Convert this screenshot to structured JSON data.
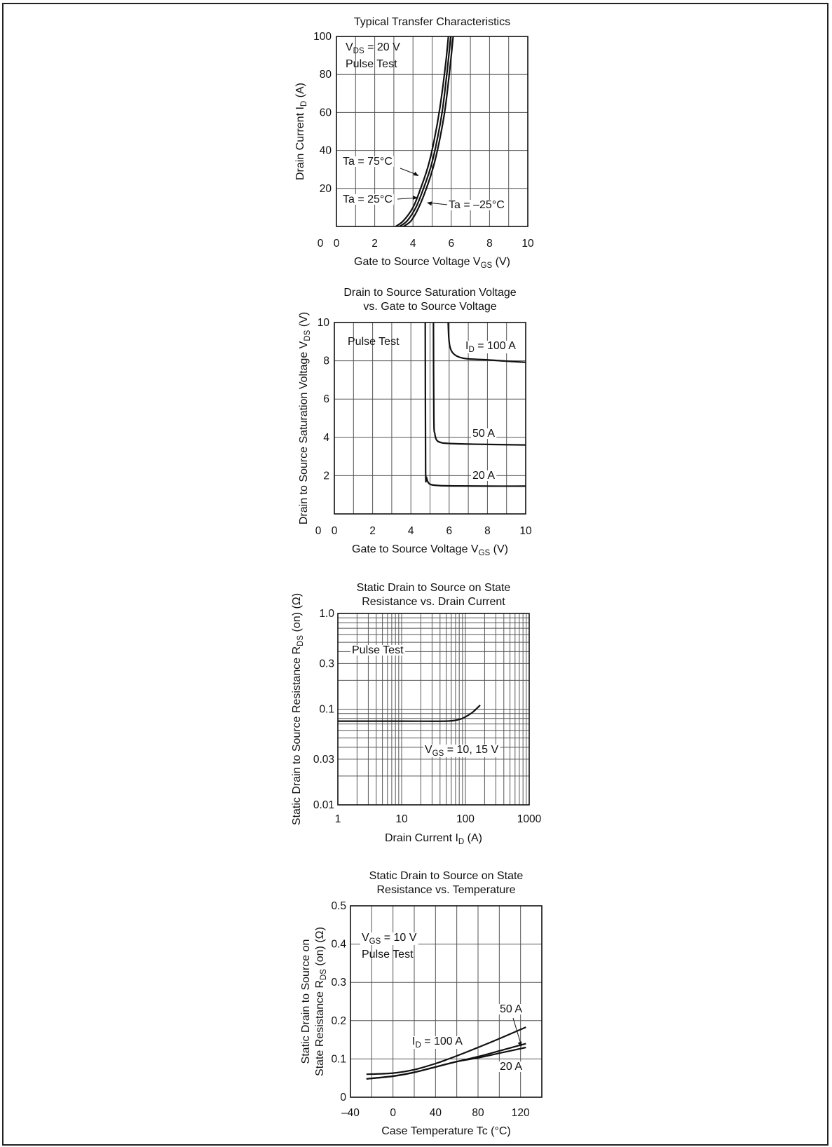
{
  "chart_data": [
    {
      "id": "c1",
      "type": "line",
      "title": "Typical Transfer Characteristics",
      "xlabel": {
        "main": "Gate to Source Voltage V",
        "sub": "GS",
        "tail": " (V)"
      },
      "ylabel": {
        "main": "Drain Current I",
        "sub": "D",
        "tail": " (A)"
      },
      "xlim": [
        0,
        10
      ],
      "ylim": [
        0,
        100
      ],
      "x_scale": "linear",
      "y_scale": "linear",
      "grid": true,
      "xticks": [
        0,
        2,
        4,
        6,
        8,
        10
      ],
      "xtick_labels": [
        "0",
        "2",
        "4",
        "6",
        "8",
        "10"
      ],
      "yticks": [
        20,
        40,
        60,
        80,
        100
      ],
      "ytick_labels": [
        "20",
        "40",
        "60",
        "80",
        "100"
      ],
      "annotations": [
        {
          "main": "V",
          "sub": "DS",
          "tail": " = 20 V"
        },
        {
          "main": "Pulse Test"
        },
        {
          "main": "Ta = 75°C"
        },
        {
          "main": "Ta = 25°C"
        },
        {
          "main": "Ta = –25°C"
        }
      ],
      "series": [
        {
          "name": "Ta = 75°C",
          "x": [
            3.1,
            3.5,
            4.0,
            4.4,
            4.8,
            5.1,
            5.4,
            5.7,
            5.85
          ],
          "y": [
            0,
            3,
            10,
            20,
            32,
            45,
            62,
            85,
            100
          ]
        },
        {
          "name": "Ta = 25°C",
          "x": [
            3.3,
            3.7,
            4.15,
            4.55,
            4.95,
            5.25,
            5.55,
            5.82,
            5.97
          ],
          "y": [
            0,
            3,
            10,
            20,
            32,
            45,
            62,
            85,
            100
          ]
        },
        {
          "name": "Ta = –25°C",
          "x": [
            3.5,
            3.9,
            4.3,
            4.7,
            5.08,
            5.38,
            5.68,
            5.95,
            6.1
          ],
          "y": [
            0,
            3,
            10,
            20,
            32,
            45,
            62,
            85,
            100
          ]
        }
      ]
    },
    {
      "id": "c2",
      "type": "line",
      "title": [
        "Drain to Source Saturation Voltage",
        "vs. Gate to Source Voltage"
      ],
      "xlabel": {
        "main": "Gate to Source Voltage V",
        "sub": "GS",
        "tail": " (V)"
      },
      "ylabel": {
        "main": "Drain to Source Saturation Voltage V",
        "sub": "DS",
        "tail": " (V)"
      },
      "xlim": [
        0,
        10
      ],
      "ylim": [
        0,
        10
      ],
      "x_scale": "linear",
      "y_scale": "linear",
      "grid": true,
      "xticks": [
        0,
        2,
        4,
        6,
        8,
        10
      ],
      "xtick_labels": [
        "0",
        "2",
        "4",
        "6",
        "8",
        "10"
      ],
      "yticks": [
        2,
        4,
        6,
        8,
        10
      ],
      "ytick_labels": [
        "2",
        "4",
        "6",
        "8",
        "10"
      ],
      "annotations": [
        {
          "main": "Pulse Test"
        },
        {
          "main": "I",
          "sub": "D",
          "tail": " = 100 A"
        },
        {
          "main": "50 A"
        },
        {
          "main": "20 A"
        }
      ],
      "series": [
        {
          "name": "I_D = 100 A",
          "x": [
            5.95,
            5.98,
            6.05,
            6.2,
            6.5,
            7.0,
            8.0,
            9.0,
            10.0
          ],
          "y": [
            10,
            9.2,
            8.7,
            8.4,
            8.2,
            8.1,
            8.05,
            7.98,
            7.92
          ]
        },
        {
          "name": "50 A",
          "x": [
            5.18,
            5.2,
            5.25,
            5.35,
            5.6,
            6.0,
            7.0,
            8.0,
            10.0
          ],
          "y": [
            10,
            5.0,
            4.2,
            3.85,
            3.72,
            3.68,
            3.65,
            3.63,
            3.6
          ]
        },
        {
          "name": "20 A",
          "x": [
            4.75,
            4.77,
            4.82,
            4.92,
            5.1,
            5.5,
            6.5,
            8.0,
            10.0
          ],
          "y": [
            10,
            2.4,
            1.9,
            1.62,
            1.52,
            1.48,
            1.46,
            1.45,
            1.45
          ]
        }
      ]
    },
    {
      "id": "c3",
      "type": "line",
      "title": [
        "Static Drain to Source on State",
        "Resistance vs. Drain Current"
      ],
      "xlabel": {
        "main": "Drain Current I",
        "sub": "D",
        "tail": " (A)"
      },
      "ylabel": {
        "main": "Static Drain to Source Resistance R",
        "sub": "DS",
        "tail": " (on) (Ω)"
      },
      "xlim": [
        1,
        1000
      ],
      "ylim": [
        0.01,
        1.0
      ],
      "x_scale": "log",
      "y_scale": "log",
      "grid": true,
      "xticks": [
        1,
        10,
        100,
        1000
      ],
      "xtick_labels": [
        "1",
        "10",
        "100",
        "1000"
      ],
      "yticks": [
        0.01,
        0.03,
        0.1,
        0.3,
        1.0
      ],
      "ytick_labels": [
        "0.01",
        "0.03",
        "0.1",
        "0.3",
        "1.0"
      ],
      "annotations": [
        {
          "main": "Pulse Test"
        },
        {
          "main": "V",
          "sub": "GS",
          "tail": " = 10, 15 V"
        }
      ],
      "series": [
        {
          "name": "V_GS = 10, 15 V",
          "x": [
            1,
            10,
            50,
            80,
            100,
            130,
            170
          ],
          "y": [
            0.075,
            0.075,
            0.075,
            0.078,
            0.083,
            0.093,
            0.11
          ]
        }
      ]
    },
    {
      "id": "c4",
      "type": "line",
      "title": [
        "Static Drain to Source on State",
        "Resistance vs. Temperature"
      ],
      "xlabel": {
        "main": "Case Temperature Tc (°C)"
      },
      "ylabel": [
        {
          "main": "Static Drain to Source on"
        },
        {
          "main": "State Resistance R",
          "sub": "DS",
          "tail": " (on) (Ω)"
        }
      ],
      "xlim": [
        -40,
        140
      ],
      "ylim": [
        0,
        0.5
      ],
      "x_scale": "linear",
      "y_scale": "linear",
      "grid": true,
      "xticks": [
        -40,
        0,
        40,
        80,
        120
      ],
      "xtick_labels": [
        "–40",
        "0",
        "40",
        "80",
        "120"
      ],
      "yticks": [
        0,
        0.1,
        0.2,
        0.3,
        0.4,
        0.5
      ],
      "ytick_labels": [
        "0",
        "0.1",
        "0.2",
        "0.3",
        "0.4",
        "0.5"
      ],
      "annotations": [
        {
          "main": "V",
          "sub": "GS",
          "tail": " = 10 V"
        },
        {
          "main": "Pulse Test"
        },
        {
          "main": "50 A"
        },
        {
          "main": "I",
          "sub": "D",
          "tail": " = 100 A"
        },
        {
          "main": "20 A"
        }
      ],
      "series": [
        {
          "name": "I_D = 100 A",
          "x": [
            -25,
            0,
            20,
            40,
            60,
            80,
            100,
            125
          ],
          "y": [
            0.06,
            0.063,
            0.072,
            0.088,
            0.108,
            0.13,
            0.153,
            0.183
          ]
        },
        {
          "name": "50 A",
          "x": [
            -25,
            0,
            20,
            40,
            60,
            80,
            100,
            125
          ],
          "y": [
            0.048,
            0.055,
            0.065,
            0.079,
            0.093,
            0.106,
            0.121,
            0.14
          ]
        },
        {
          "name": "20 A",
          "x": [
            -25,
            0,
            20,
            40,
            60,
            80,
            100,
            125
          ],
          "y": [
            0.048,
            0.055,
            0.065,
            0.079,
            0.093,
            0.103,
            0.115,
            0.13
          ]
        }
      ]
    }
  ]
}
